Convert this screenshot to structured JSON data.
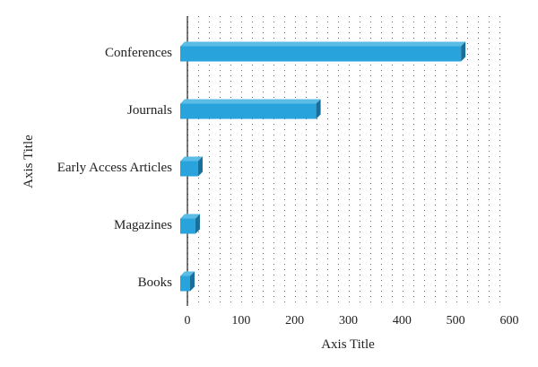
{
  "chart_data": {
    "type": "bar",
    "orientation": "horizontal",
    "categories": [
      "Conferences",
      "Journals",
      "Early Access Articles",
      "Magazines",
      "Books"
    ],
    "values": [
      510,
      240,
      20,
      15,
      5
    ],
    "xlabel": "Axis Title",
    "ylabel": "Axis Title",
    "xlim": [
      0,
      600
    ],
    "xticks": [
      0,
      100,
      200,
      300,
      400,
      500,
      600
    ],
    "grid": "dotted",
    "legend": "none",
    "colors": {
      "bar_front": "#29a3dc",
      "bar_top": "#5bbce6",
      "bar_side": "#1a6f9a"
    }
  }
}
